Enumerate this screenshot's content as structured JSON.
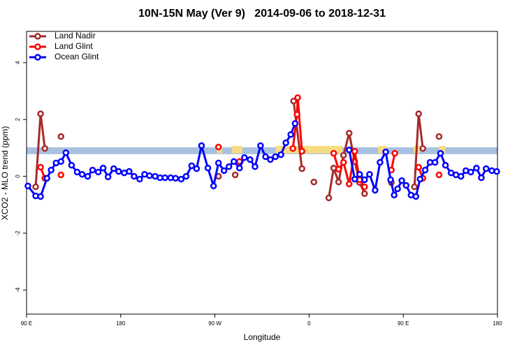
{
  "chart_data": {
    "type": "line",
    "title": "10N-15N May (Ver 9)   2014-09-06 to 2018-12-31",
    "x_label": "Longitude",
    "y_label": "XCO2 - MLO trend (ppm)",
    "xlim": [
      90,
      540
    ],
    "ylim": [
      -4.85,
      5.1
    ],
    "xticks": [
      {
        "value": 90,
        "label": "90 E"
      },
      180,
      {
        "value": 270,
        "label": "90 W"
      },
      {
        "value": 360,
        "label": "0"
      },
      {
        "value": 450,
        "label": "90 E"
      },
      {
        "value": 540,
        "label": "180"
      }
    ],
    "yticks": [
      -4,
      -2,
      0,
      2,
      4
    ],
    "legend": "top-left",
    "band": {
      "color": "#a9c1e0",
      "range": [
        0.78,
        1.02
      ]
    },
    "highlight": {
      "color": "#f8dc82",
      "range": [
        0.81,
        1.07
      ],
      "spans": [
        [
          272,
          277
        ],
        [
          286,
          296
        ],
        [
          328,
          392
        ],
        [
          426,
          434
        ],
        [
          460,
          466
        ],
        [
          484,
          490
        ]
      ]
    },
    "series": [
      {
        "name": "Land Nadir",
        "color": "#a52a2a",
        "x": [
          98.7,
          103.4,
          107.5,
          115,
          122.9,
          200,
          273.4,
          280,
          289.4,
          300,
          345.2,
          353.2,
          358,
          364.6,
          370,
          378.8,
          383.5,
          388.2,
          392.9,
          398.3,
          403.6,
          408.3,
          413,
          420,
          438.6,
          450,
          460.7,
          464.7,
          468.7,
          476,
          484.2
        ],
        "values": [
          -0.37,
          2.2,
          0.98,
          null,
          1.4,
          null,
          0,
          null,
          0.05,
          null,
          2.65,
          0.27,
          null,
          -0.2,
          null,
          -0.76,
          0.29,
          -0.2,
          0.74,
          1.52,
          0.52,
          -0.22,
          -0.61,
          null,
          -0.22,
          null,
          -0.37,
          2.2,
          0.98,
          null,
          1.4
        ]
      },
      {
        "name": "Land Glint",
        "color": "#ff0000",
        "x": [
          103.4,
          107.5,
          115,
          122.9,
          200,
          273.4,
          280,
          293.5,
          310,
          344.5,
          348.5,
          349.1,
          353.2,
          370,
          383.5,
          388.2,
          392.9,
          398.3,
          403.6,
          408.3,
          413,
          420,
          438.6,
          441.9,
          455,
          464.7,
          468.7,
          476,
          484.2
        ],
        "values": [
          0.32,
          -0.07,
          null,
          0.05,
          null,
          1.03,
          null,
          0.52,
          null,
          0.98,
          2.18,
          2.77,
          0.88,
          null,
          0.81,
          0.25,
          0.49,
          -0.27,
          0.88,
          -0.12,
          -0.37,
          null,
          0.22,
          0.81,
          null,
          0.32,
          -0.07,
          null,
          0.05
        ]
      },
      {
        "name": "Ocean Glint",
        "color": "#0000ff",
        "x": [
          91.3,
          98.7,
          103.4,
          109.5,
          113.5,
          118.2,
          122.9,
          127.6,
          133,
          138.4,
          143.1,
          148.4,
          153.1,
          158.5,
          163.2,
          167.9,
          173.3,
          178,
          183.4,
          188.1,
          192.8,
          198.1,
          202.8,
          207.5,
          212.9,
          217.6,
          222.3,
          227.7,
          232.4,
          237.8,
          242.5,
          247.8,
          252.5,
          257.2,
          263.3,
          268.7,
          273.4,
          278.7,
          283.4,
          288.1,
          293.5,
          298.2,
          303.6,
          308.3,
          313.6,
          318.4,
          323,
          327.8,
          333.1,
          337.8,
          342.5,
          346.6,
          370,
          398.3,
          403.6,
          408.3,
          413,
          417.8,
          423.1,
          427.8,
          433.2,
          437.9,
          441.3,
          444.6,
          448.6,
          452.7,
          457.4,
          462.1,
          466.1,
          470.9,
          475.6,
          480.3,
          485.6,
          490.3,
          495.7,
          500.4,
          505.1,
          509.8,
          514.5,
          519.9,
          524.6,
          529.2,
          534.6,
          539.3
        ],
        "values": [
          -0.34,
          -0.69,
          -0.71,
          -0.07,
          0.22,
          0.47,
          0.52,
          0.83,
          0.39,
          0.15,
          0.07,
          0,
          0.22,
          0.15,
          0.29,
          -0.02,
          0.27,
          0.17,
          0.12,
          0.17,
          0,
          -0.1,
          0.07,
          0.02,
          0,
          -0.05,
          -0.05,
          -0.05,
          -0.07,
          -0.1,
          0,
          0.37,
          0.27,
          1.08,
          0.29,
          -0.34,
          0.47,
          0.2,
          0.34,
          0.52,
          0.29,
          0.66,
          0.59,
          0.34,
          1.08,
          0.69,
          0.59,
          0.69,
          0.76,
          1.18,
          1.47,
          1.86,
          null,
          0.93,
          -0.1,
          0.07,
          -0.12,
          0.07,
          -0.49,
          0.49,
          0.86,
          -0.12,
          -0.66,
          -0.44,
          -0.15,
          -0.32,
          -0.66,
          -0.71,
          -0.1,
          0.22,
          0.49,
          0.49,
          0.81,
          0.39,
          0.12,
          0.05,
          0,
          0.2,
          0.15,
          0.29,
          -0.05,
          0.27,
          0.2,
          0.17
        ]
      }
    ]
  }
}
